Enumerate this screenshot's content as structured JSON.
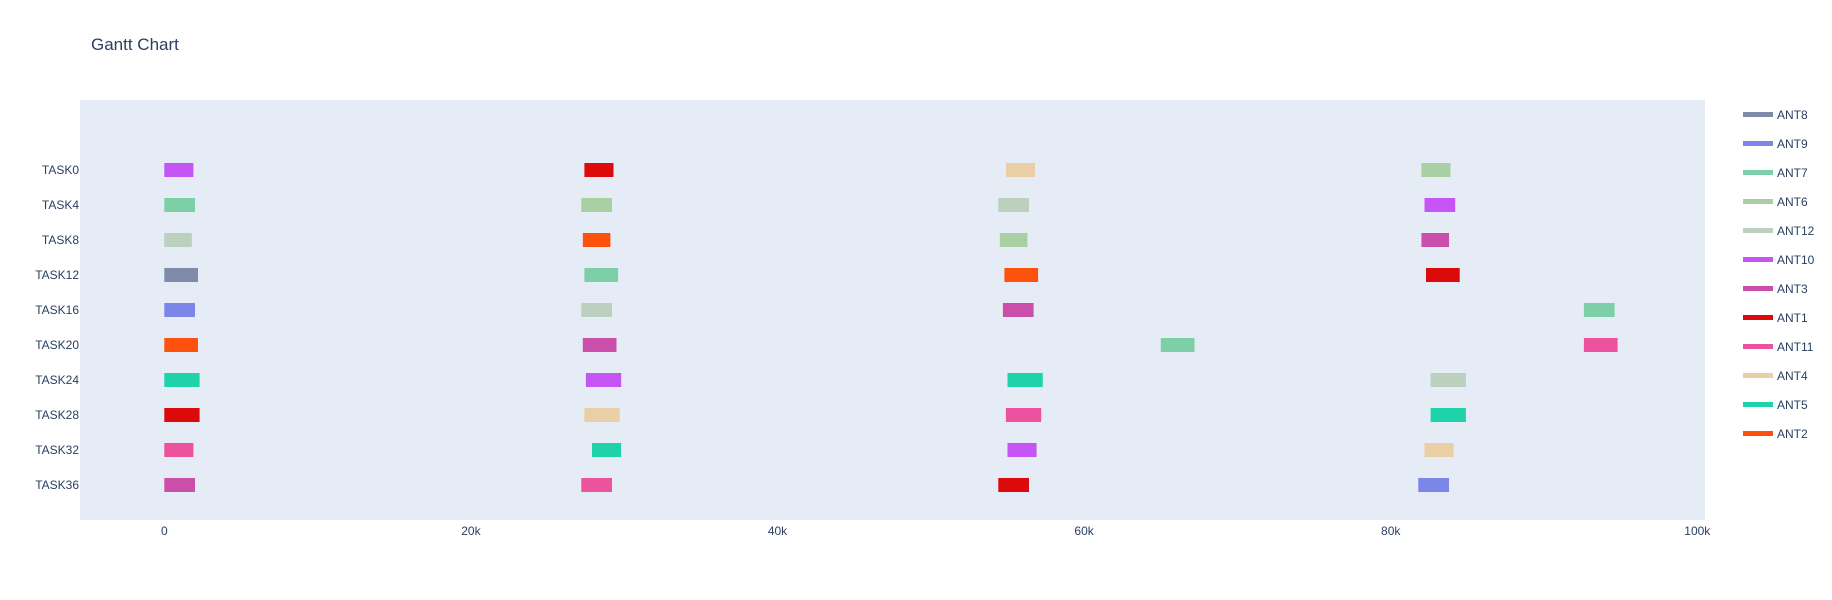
{
  "chart_data": {
    "type": "gantt",
    "title": "Gantt Chart",
    "xlabel": "",
    "ylabel": "",
    "xlim": [
      -5500,
      100500
    ],
    "x_ticks": [
      0,
      20000,
      40000,
      60000,
      80000,
      100000
    ],
    "x_tick_labels": [
      "0",
      "20k",
      "40k",
      "60k",
      "80k",
      "100k"
    ],
    "grid": false,
    "plot_background": "#e5ecf6",
    "legend_position": "right",
    "tasks": [
      "TASK0",
      "TASK4",
      "TASK8",
      "TASK12",
      "TASK16",
      "TASK20",
      "TASK24",
      "TASK28",
      "TASK32",
      "TASK36"
    ],
    "legend": [
      {
        "name": "ANT8",
        "color": "#7f8ba8"
      },
      {
        "name": "ANT9",
        "color": "#7c86e8"
      },
      {
        "name": "ANT7",
        "color": "#7dcfa8"
      },
      {
        "name": "ANT6",
        "color": "#a9d0a2"
      },
      {
        "name": "ANT12",
        "color": "#bcd0bf"
      },
      {
        "name": "ANT10",
        "color": "#c655f5"
      },
      {
        "name": "ANT3",
        "color": "#c94fab"
      },
      {
        "name": "ANT1",
        "color": "#dc0a0a"
      },
      {
        "name": "ANT11",
        "color": "#ec529e"
      },
      {
        "name": "ANT4",
        "color": "#eacfa6"
      },
      {
        "name": "ANT5",
        "color": "#1ed3a9"
      },
      {
        "name": "ANT2",
        "color": "#fc520d"
      }
    ],
    "bars": [
      {
        "task": "TASK0",
        "resource": "ANT10",
        "start": 0,
        "end": 1900
      },
      {
        "task": "TASK0",
        "resource": "ANT1",
        "start": 27400,
        "end": 29300
      },
      {
        "task": "TASK0",
        "resource": "ANT4",
        "start": 54900,
        "end": 56800
      },
      {
        "task": "TASK0",
        "resource": "ANT6",
        "start": 82000,
        "end": 83900
      },
      {
        "task": "TASK4",
        "resource": "ANT7",
        "start": 0,
        "end": 2000
      },
      {
        "task": "TASK4",
        "resource": "ANT6",
        "start": 27200,
        "end": 29200
      },
      {
        "task": "TASK4",
        "resource": "ANT12",
        "start": 54400,
        "end": 56400
      },
      {
        "task": "TASK4",
        "resource": "ANT10",
        "start": 82200,
        "end": 84200
      },
      {
        "task": "TASK8",
        "resource": "ANT12",
        "start": 0,
        "end": 1800
      },
      {
        "task": "TASK8",
        "resource": "ANT2",
        "start": 27300,
        "end": 29100
      },
      {
        "task": "TASK8",
        "resource": "ANT6",
        "start": 54500,
        "end": 56300
      },
      {
        "task": "TASK8",
        "resource": "ANT3",
        "start": 82000,
        "end": 83800
      },
      {
        "task": "TASK12",
        "resource": "ANT8",
        "start": 0,
        "end": 2200
      },
      {
        "task": "TASK12",
        "resource": "ANT7",
        "start": 27400,
        "end": 29600
      },
      {
        "task": "TASK12",
        "resource": "ANT2",
        "start": 54800,
        "end": 57000
      },
      {
        "task": "TASK12",
        "resource": "ANT1",
        "start": 82300,
        "end": 84500
      },
      {
        "task": "TASK16",
        "resource": "ANT9",
        "start": 0,
        "end": 2000
      },
      {
        "task": "TASK16",
        "resource": "ANT12",
        "start": 27200,
        "end": 29200
      },
      {
        "task": "TASK16",
        "resource": "ANT3",
        "start": 54700,
        "end": 56700
      },
      {
        "task": "TASK16",
        "resource": "ANT7",
        "start": 92600,
        "end": 94600
      },
      {
        "task": "TASK20",
        "resource": "ANT2",
        "start": 0,
        "end": 2200
      },
      {
        "task": "TASK20",
        "resource": "ANT3",
        "start": 27300,
        "end": 29500
      },
      {
        "task": "TASK20",
        "resource": "ANT7",
        "start": 65000,
        "end": 67200
      },
      {
        "task": "TASK20",
        "resource": "ANT11",
        "start": 92600,
        "end": 94800
      },
      {
        "task": "TASK24",
        "resource": "ANT5",
        "start": 0,
        "end": 2300
      },
      {
        "task": "TASK24",
        "resource": "ANT10",
        "start": 27500,
        "end": 29800
      },
      {
        "task": "TASK24",
        "resource": "ANT5",
        "start": 55000,
        "end": 57300
      },
      {
        "task": "TASK24",
        "resource": "ANT12",
        "start": 82600,
        "end": 84900
      },
      {
        "task": "TASK28",
        "resource": "ANT1",
        "start": 0,
        "end": 2300
      },
      {
        "task": "TASK28",
        "resource": "ANT4",
        "start": 27400,
        "end": 29700
      },
      {
        "task": "TASK28",
        "resource": "ANT11",
        "start": 54900,
        "end": 57200
      },
      {
        "task": "TASK28",
        "resource": "ANT5",
        "start": 82600,
        "end": 84900
      },
      {
        "task": "TASK32",
        "resource": "ANT11",
        "start": 0,
        "end": 1900
      },
      {
        "task": "TASK32",
        "resource": "ANT5",
        "start": 27900,
        "end": 29800
      },
      {
        "task": "TASK32",
        "resource": "ANT10",
        "start": 55000,
        "end": 56900
      },
      {
        "task": "TASK32",
        "resource": "ANT4",
        "start": 82200,
        "end": 84100
      },
      {
        "task": "TASK36",
        "resource": "ANT3",
        "start": 0,
        "end": 2000
      },
      {
        "task": "TASK36",
        "resource": "ANT11",
        "start": 27200,
        "end": 29200
      },
      {
        "task": "TASK36",
        "resource": "ANT1",
        "start": 54400,
        "end": 56400
      },
      {
        "task": "TASK36",
        "resource": "ANT9",
        "start": 81800,
        "end": 83800
      }
    ]
  }
}
